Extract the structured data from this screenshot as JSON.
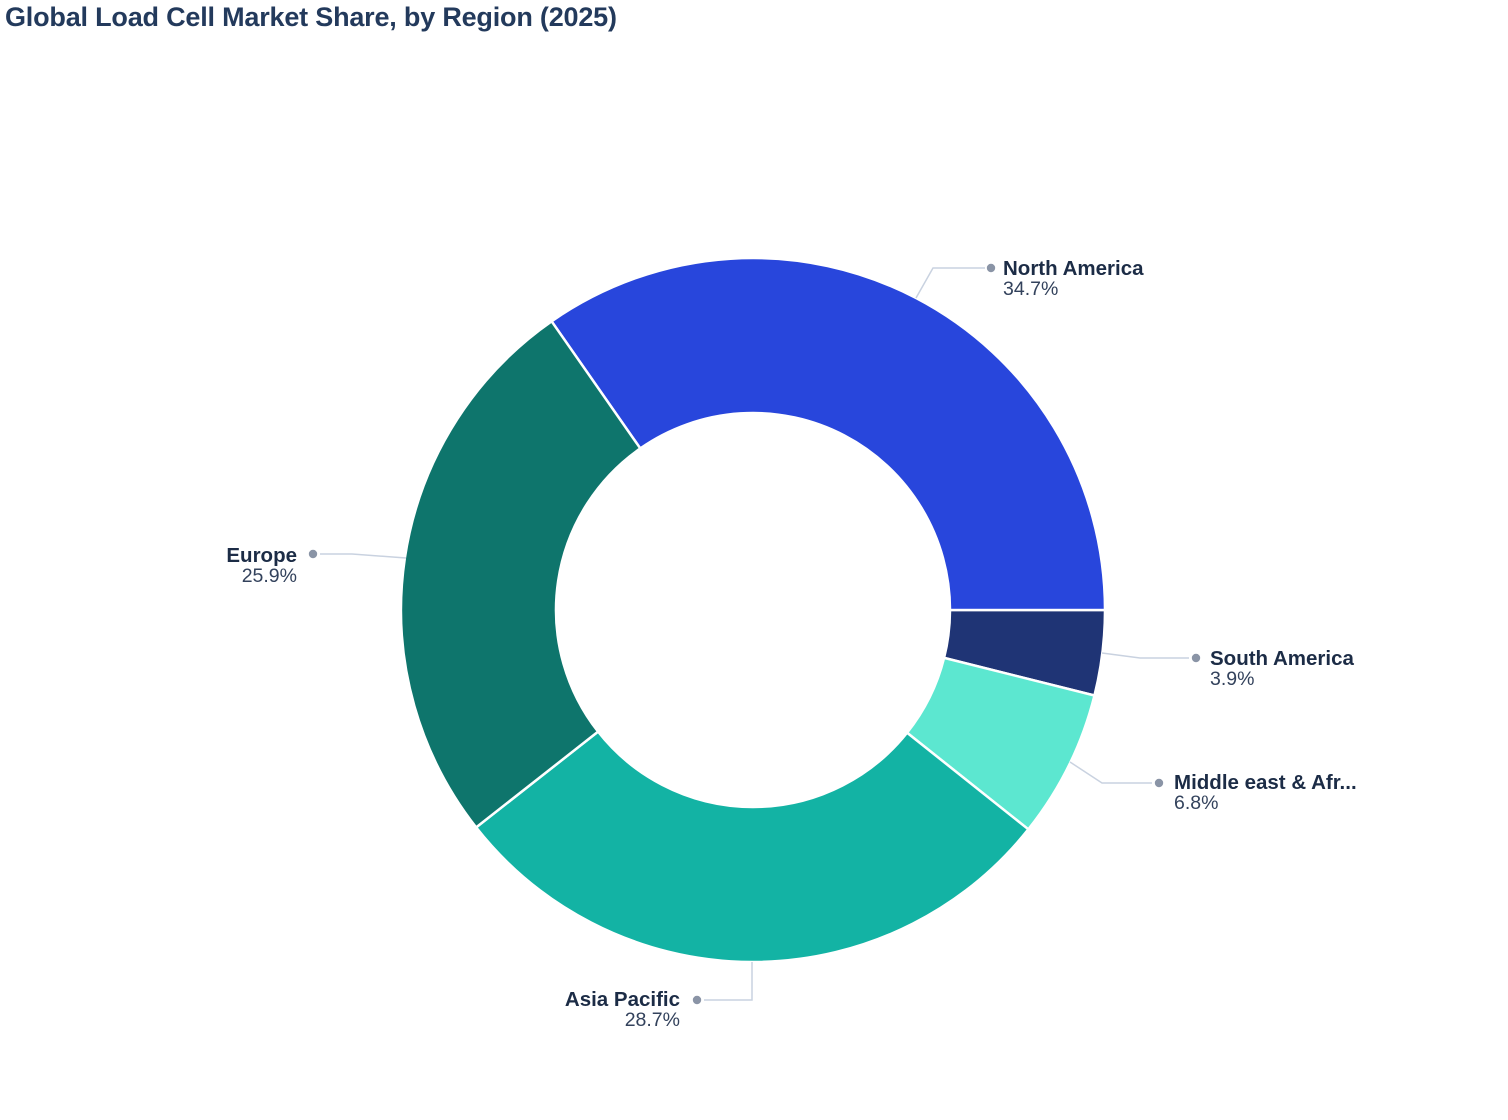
{
  "chart_data": {
    "type": "pie",
    "subtype": "donut",
    "title": "Global Load Cell Market Share, by Region (2025)",
    "unit": "%",
    "total": 100,
    "start_angle_deg": -34.9,
    "inner_radius_ratio": 0.56,
    "legend": "none",
    "labels_outside": true,
    "slices": [
      {
        "label": "North America",
        "value": 34.7,
        "display": "34.7%",
        "color": "#2846dc"
      },
      {
        "label": "South America",
        "value": 3.9,
        "display": "3.9%",
        "color": "#1f3475"
      },
      {
        "label": "Middle east & Afr...",
        "value": 6.8,
        "display": "6.8%",
        "color": "#5ce7d0"
      },
      {
        "label": "Asia Pacific",
        "value": 28.7,
        "display": "28.7%",
        "color": "#13b3a4"
      },
      {
        "label": "Europe",
        "value": 25.9,
        "display": "25.9%",
        "color": "#0e756c"
      }
    ],
    "style": {
      "title_color": "#233a5c",
      "name_color": "#1c2c46",
      "pct_color": "#33425c",
      "connector_color": "#c9d2e0",
      "dot_color": "#8a94a6",
      "background": "#ffffff"
    }
  }
}
